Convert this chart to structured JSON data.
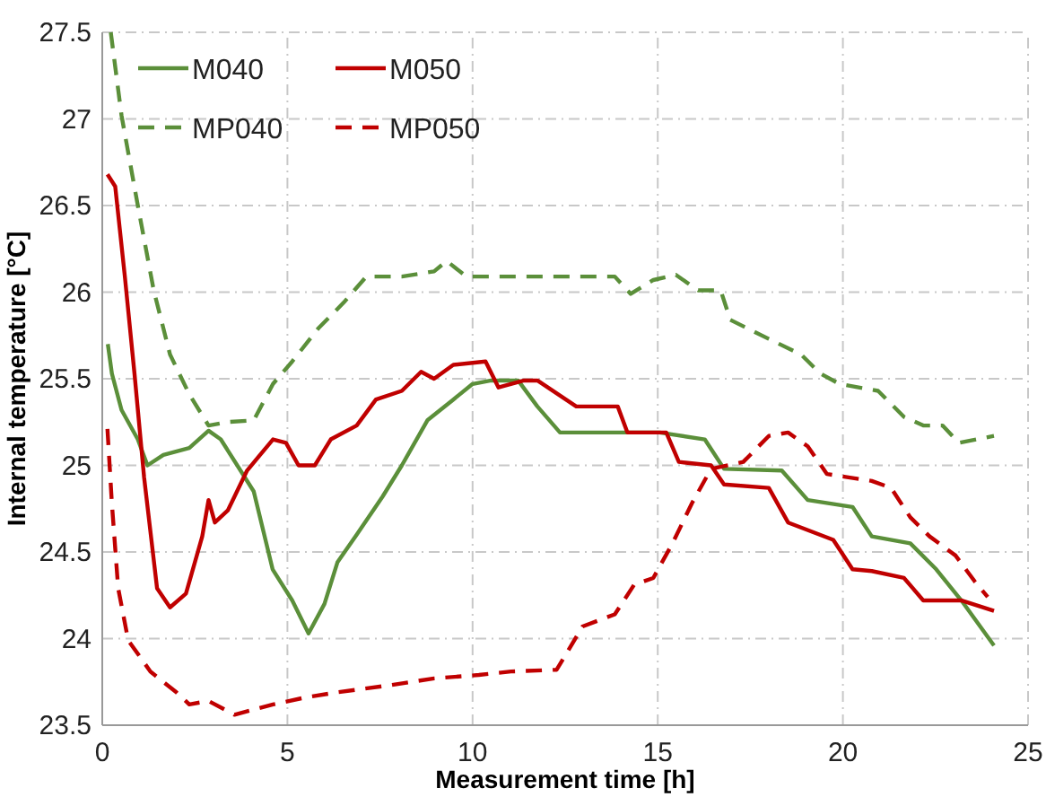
{
  "chart_data": {
    "type": "line",
    "xlabel": "Measurement time [h]",
    "ylabel": "Internal temperature [°C]",
    "xlim": [
      0,
      25
    ],
    "xticks": [
      0,
      5,
      10,
      15,
      20,
      25
    ],
    "ylim": [
      23.5,
      27.5
    ],
    "yticks": [
      23.5,
      24,
      24.5,
      25,
      25.5,
      26,
      26.5,
      27,
      27.5
    ],
    "grid": true,
    "legend": "top left",
    "series": [
      {
        "name": "M040",
        "color": "#5b8f3a",
        "line_style": "solid",
        "x": [
          0.15,
          0.26,
          0.52,
          0.96,
          1.22,
          1.65,
          2.35,
          2.87,
          3.2,
          4.09,
          4.6,
          5.13,
          5.57,
          6.0,
          6.35,
          6.87,
          7.57,
          8.09,
          8.78,
          9.48,
          10.0,
          10.5,
          11.04,
          11.23,
          11.75,
          12.36,
          13.84,
          15.05,
          16.27,
          16.79,
          18.35,
          19.05,
          20.26,
          20.78,
          21.82,
          22.52,
          23.2,
          24.08
        ],
        "values": [
          25.7,
          25.53,
          25.32,
          25.15,
          25.0,
          25.06,
          25.1,
          25.2,
          25.15,
          24.85,
          24.4,
          24.22,
          24.03,
          24.2,
          24.44,
          24.6,
          24.82,
          25.0,
          25.26,
          25.38,
          25.47,
          25.49,
          25.49,
          25.49,
          25.34,
          25.19,
          25.19,
          25.19,
          25.15,
          24.98,
          24.97,
          24.8,
          24.76,
          24.59,
          24.55,
          24.4,
          24.22,
          23.96
        ]
      },
      {
        "name": "M050",
        "color": "#c00000",
        "line_style": "solid",
        "x": [
          0.14,
          0.35,
          0.61,
          0.87,
          1.13,
          1.48,
          1.83,
          2.26,
          2.7,
          2.87,
          3.04,
          3.39,
          3.91,
          4.61,
          4.96,
          5.3,
          5.74,
          6.17,
          6.87,
          7.39,
          8.09,
          8.61,
          8.96,
          9.48,
          10.35,
          10.7,
          11.39,
          11.75,
          12.8,
          13.92,
          14.18,
          15.23,
          15.57,
          16.44,
          16.79,
          18.0,
          18.52,
          19.74,
          20.26,
          20.78,
          21.65,
          22.17,
          23.21,
          24.08
        ],
        "values": [
          26.68,
          26.61,
          26.09,
          25.53,
          24.93,
          24.29,
          24.18,
          24.26,
          24.59,
          24.8,
          24.67,
          24.74,
          24.97,
          25.15,
          25.13,
          25.0,
          25.0,
          25.15,
          25.23,
          25.38,
          25.43,
          25.54,
          25.5,
          25.58,
          25.6,
          25.45,
          25.49,
          25.49,
          25.34,
          25.34,
          25.19,
          25.19,
          25.02,
          25.0,
          24.89,
          24.87,
          24.67,
          24.57,
          24.4,
          24.39,
          24.35,
          24.22,
          24.22,
          24.16
        ]
      },
      {
        "name": "MP040",
        "color": "#5b8f3a",
        "line_style": "dashed",
        "x": [
          0.23,
          0.52,
          0.96,
          1.39,
          1.83,
          2.35,
          2.87,
          3.39,
          4.09,
          4.61,
          5.13,
          5.83,
          6.52,
          7.13,
          8.09,
          8.96,
          9.3,
          9.83,
          13.84,
          14.27,
          14.88,
          15.49,
          16.09,
          16.7,
          16.96,
          18.0,
          18.87,
          19.39,
          19.91,
          20.95,
          21.65,
          22.17,
          22.69,
          23.13,
          24.08
        ],
        "values": [
          27.5,
          27.02,
          26.5,
          26.01,
          25.64,
          25.41,
          25.23,
          25.25,
          25.26,
          25.47,
          25.6,
          25.79,
          25.94,
          26.09,
          26.09,
          26.12,
          26.18,
          26.09,
          26.09,
          25.99,
          26.07,
          26.1,
          26.01,
          26.01,
          25.84,
          25.73,
          25.64,
          25.53,
          25.47,
          25.43,
          25.28,
          25.23,
          25.23,
          25.13,
          25.17
        ]
      },
      {
        "name": "MP050",
        "color": "#c00000",
        "line_style": "dashed",
        "x": [
          0.14,
          0.26,
          0.43,
          0.7,
          1.3,
          2.0,
          2.35,
          2.87,
          3.57,
          4.61,
          5.48,
          6.35,
          7.74,
          8.96,
          10.17,
          11.04,
          12.27,
          12.97,
          13.84,
          14.36,
          14.88,
          15.4,
          15.92,
          16.44,
          17.31,
          18.0,
          18.52,
          19.05,
          19.57,
          20.78,
          21.3,
          21.82,
          22.34,
          23.04,
          23.56,
          23.91
        ],
        "values": [
          25.21,
          24.78,
          24.29,
          23.99,
          23.81,
          23.69,
          23.62,
          23.64,
          23.56,
          23.62,
          23.66,
          23.69,
          23.73,
          23.77,
          23.79,
          23.81,
          23.82,
          24.07,
          24.14,
          24.31,
          24.35,
          24.55,
          24.78,
          24.98,
          25.02,
          25.17,
          25.19,
          25.11,
          24.95,
          24.91,
          24.87,
          24.7,
          24.59,
          24.48,
          24.33,
          24.24
        ]
      }
    ]
  }
}
